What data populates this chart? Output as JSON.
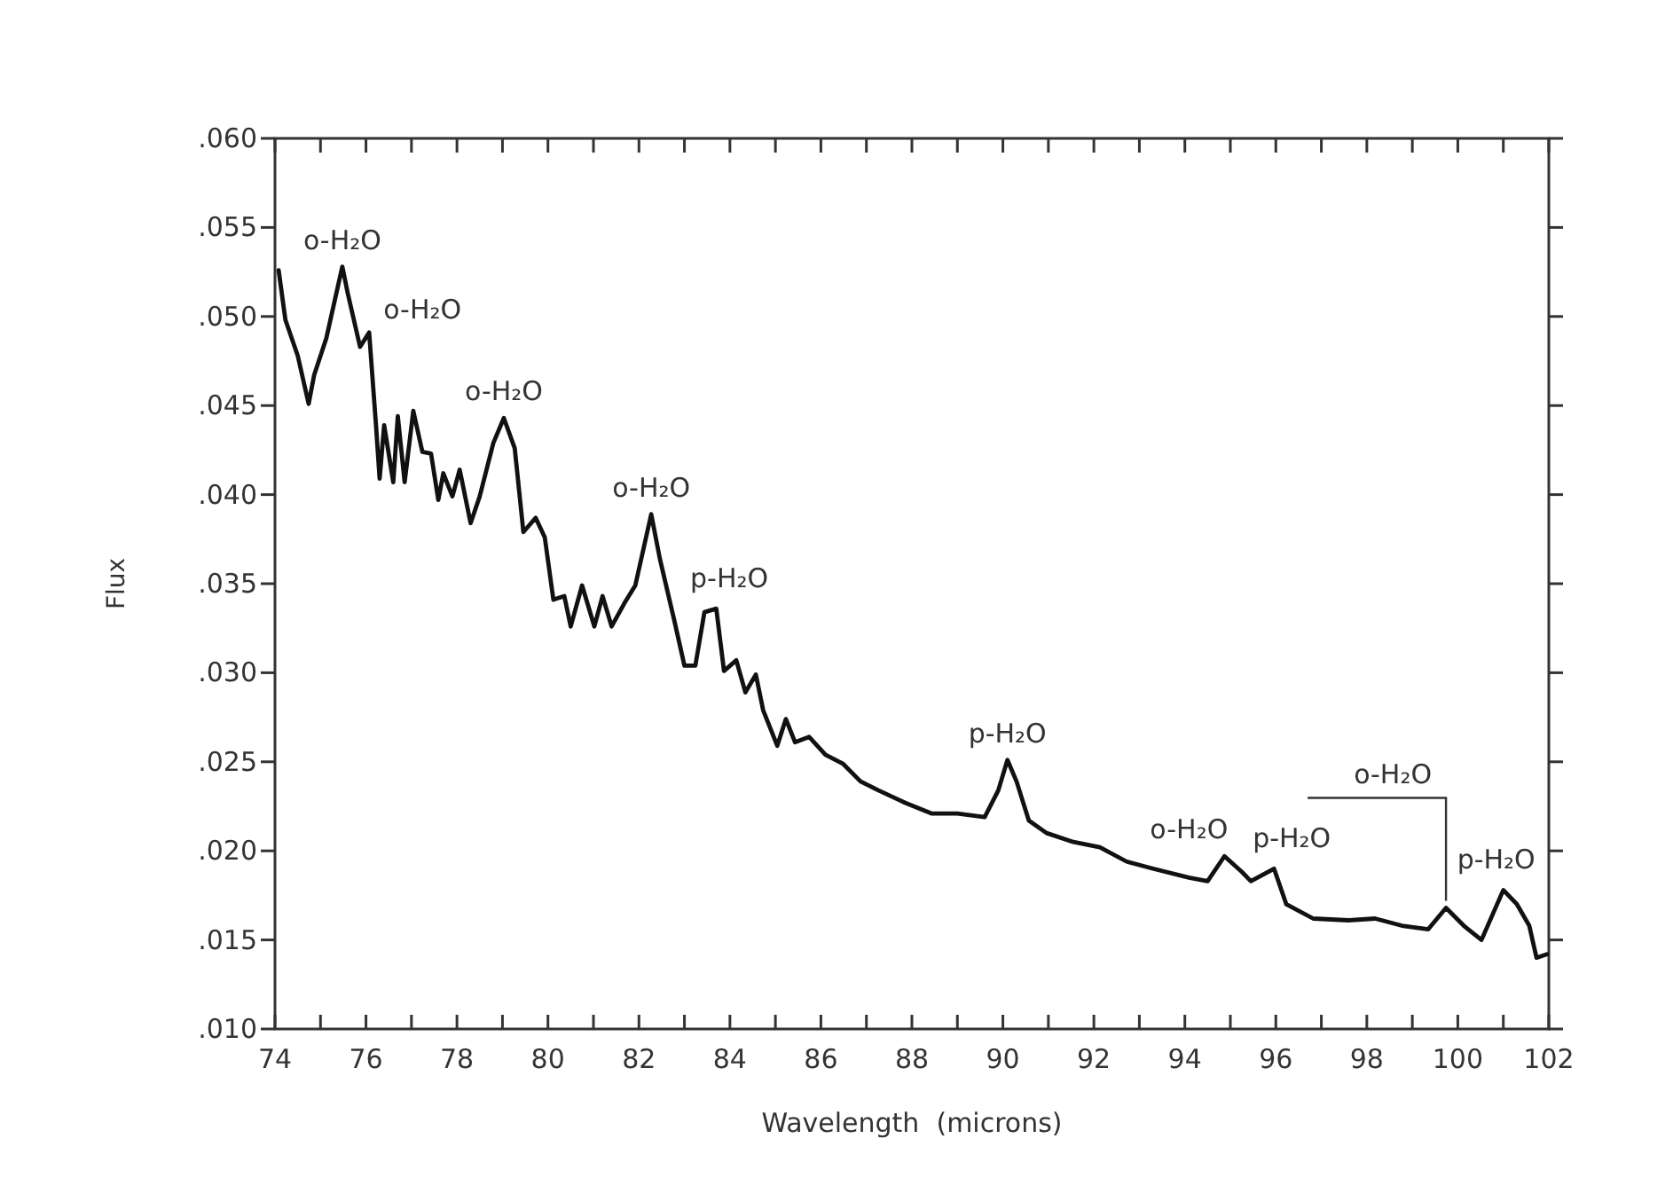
{
  "chart_data": {
    "type": "line",
    "xlabel": "Wavelength  (microns)",
    "ylabel": "Flux",
    "xlim": [
      74,
      102
    ],
    "ylim": [
      0.01,
      0.06
    ],
    "xticks": [
      74,
      {
        "value": 75,
        "label": null
      },
      76,
      {
        "value": 77,
        "label": null
      },
      78,
      {
        "value": 79,
        "label": null
      },
      80,
      {
        "value": 81,
        "label": null
      },
      82,
      {
        "value": 83,
        "label": null
      },
      84,
      {
        "value": 85,
        "label": null
      },
      86,
      {
        "value": 87,
        "label": null
      },
      88,
      {
        "value": 89,
        "label": null
      },
      90,
      {
        "value": 91,
        "label": null
      },
      92,
      {
        "value": 93,
        "label": null
      },
      94,
      {
        "value": 95,
        "label": null
      },
      96,
      {
        "value": 97,
        "label": null
      },
      98,
      {
        "value": 99,
        "label": null
      },
      100,
      {
        "value": 101,
        "label": null
      },
      102
    ],
    "yticks": [
      {
        "value": 0.01,
        "label": ".010"
      },
      {
        "value": 0.015,
        "label": ".015"
      },
      {
        "value": 0.02,
        "label": ".020"
      },
      {
        "value": 0.025,
        "label": ".025"
      },
      {
        "value": 0.03,
        "label": ".030"
      },
      {
        "value": 0.035,
        "label": ".035"
      },
      {
        "value": 0.04,
        "label": ".040"
      },
      {
        "value": 0.045,
        "label": ".045"
      },
      {
        "value": 0.05,
        "label": ".050"
      },
      {
        "value": 0.055,
        "label": ".055"
      },
      {
        "value": 0.06,
        "label": ".060"
      }
    ],
    "grid": false,
    "marker": "none",
    "line_style": "solid",
    "series": [
      {
        "color": "#111111",
        "x": [
          74.08,
          74.23,
          74.5,
          74.74,
          74.86,
          75.13,
          75.48,
          75.6,
          75.87,
          76.07,
          76.22,
          76.3,
          76.4,
          76.6,
          76.7,
          76.85,
          77.04,
          77.24,
          77.43,
          77.59,
          77.7,
          77.9,
          78.06,
          78.3,
          78.5,
          78.8,
          79.03,
          79.27,
          79.46,
          79.73,
          79.93,
          80.12,
          80.36,
          80.5,
          80.75,
          81.02,
          81.2,
          81.4,
          81.68,
          81.92,
          82.27,
          82.46,
          82.78,
          83.0,
          83.24,
          83.44,
          83.7,
          83.87,
          84.14,
          84.34,
          84.57,
          84.73,
          85.04,
          85.23,
          85.43,
          85.74,
          86.1,
          86.48,
          86.87,
          87.26,
          87.85,
          88.43,
          89.0,
          89.6,
          89.9,
          90.1,
          90.3,
          90.57,
          90.96,
          91.55,
          92.13,
          92.72,
          93.3,
          94.09,
          94.5,
          94.87,
          95.26,
          95.45,
          95.96,
          96.23,
          96.82,
          97.6,
          98.18,
          98.77,
          99.35,
          99.74,
          100.13,
          100.52,
          101.0,
          101.3,
          101.57,
          101.73,
          101.96
        ],
        "values": [
          0.0526,
          0.0498,
          0.0478,
          0.0451,
          0.0467,
          0.0488,
          0.0528,
          0.0513,
          0.0483,
          0.0491,
          0.0439,
          0.0409,
          0.0439,
          0.0407,
          0.0444,
          0.0407,
          0.0447,
          0.0424,
          0.0423,
          0.0397,
          0.0412,
          0.0399,
          0.0414,
          0.0384,
          0.0399,
          0.0429,
          0.0443,
          0.0426,
          0.0379,
          0.0387,
          0.0376,
          0.0341,
          0.0343,
          0.0326,
          0.0349,
          0.0326,
          0.0343,
          0.0326,
          0.0339,
          0.0349,
          0.0389,
          0.0364,
          0.0329,
          0.0304,
          0.0304,
          0.0334,
          0.0336,
          0.0301,
          0.0307,
          0.0289,
          0.0299,
          0.0279,
          0.0259,
          0.0274,
          0.0261,
          0.0264,
          0.0254,
          0.0249,
          0.0239,
          0.0234,
          0.0227,
          0.0221,
          0.0221,
          0.0219,
          0.0234,
          0.0251,
          0.0239,
          0.0217,
          0.021,
          0.0205,
          0.0202,
          0.0194,
          0.019,
          0.0185,
          0.0183,
          0.0197,
          0.0188,
          0.0183,
          0.019,
          0.017,
          0.0162,
          0.0161,
          0.0162,
          0.0158,
          0.0156,
          0.0168,
          0.0158,
          0.015,
          0.0178,
          0.017,
          0.0158,
          0.014,
          0.0142
        ]
      }
    ],
    "annotations": [
      {
        "text": "o-H₂O",
        "x": 75.48,
        "y": 0.0528
      },
      {
        "text": "o-H₂O",
        "x": 76.07,
        "y": 0.0491
      },
      {
        "text": "o-H₂O",
        "x": 79.03,
        "y": 0.0443
      },
      {
        "text": "o-H₂O",
        "x": 82.27,
        "y": 0.0389
      },
      {
        "text": "p-H₂O",
        "x": 83.44,
        "y": 0.0334
      },
      {
        "text": "p-H₂O",
        "x": 90.1,
        "y": 0.0251
      },
      {
        "text": "o-H₂O",
        "x": 94.87,
        "y": 0.0197
      },
      {
        "text": "p-H₂O",
        "x": 95.96,
        "y": 0.019
      },
      {
        "text": "o-H₂O",
        "x": 99.74,
        "y": 0.0168
      },
      {
        "text": "p-H₂O",
        "x": 101.0,
        "y": 0.0178
      }
    ]
  }
}
